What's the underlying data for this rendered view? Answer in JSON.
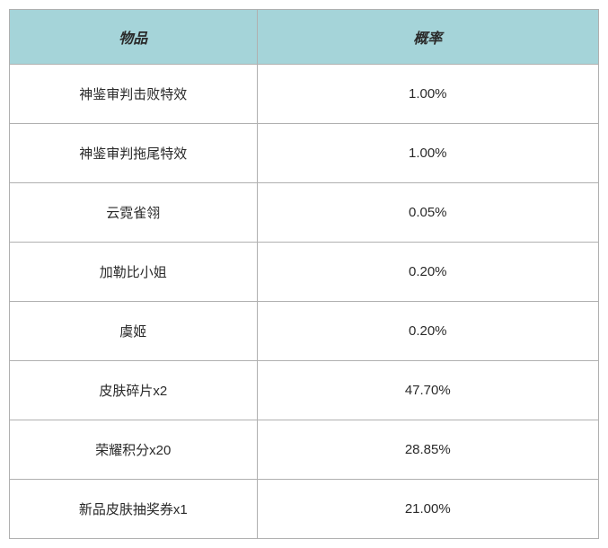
{
  "table": {
    "columns": [
      "物品",
      "概率"
    ],
    "header_bg": "#a5d4d9",
    "header_color": "#2a2a2a",
    "border_color": "#b0b0b0",
    "cell_color": "#2a2a2a",
    "cell_bg": "#ffffff",
    "header_fontsize": 16,
    "cell_fontsize": 15,
    "col_widths": [
      "42%",
      "58%"
    ],
    "rows": [
      [
        "神鉴审判击败特效",
        "1.00%"
      ],
      [
        "神鉴审判拖尾特效",
        "1.00%"
      ],
      [
        "云霓雀翎",
        "0.05%"
      ],
      [
        "加勒比小姐",
        "0.20%"
      ],
      [
        "虞姬",
        "0.20%"
      ],
      [
        "皮肤碎片x2",
        "47.70%"
      ],
      [
        "荣耀积分x20",
        "28.85%"
      ],
      [
        "新品皮肤抽奖券x1",
        "21.00%"
      ]
    ]
  }
}
